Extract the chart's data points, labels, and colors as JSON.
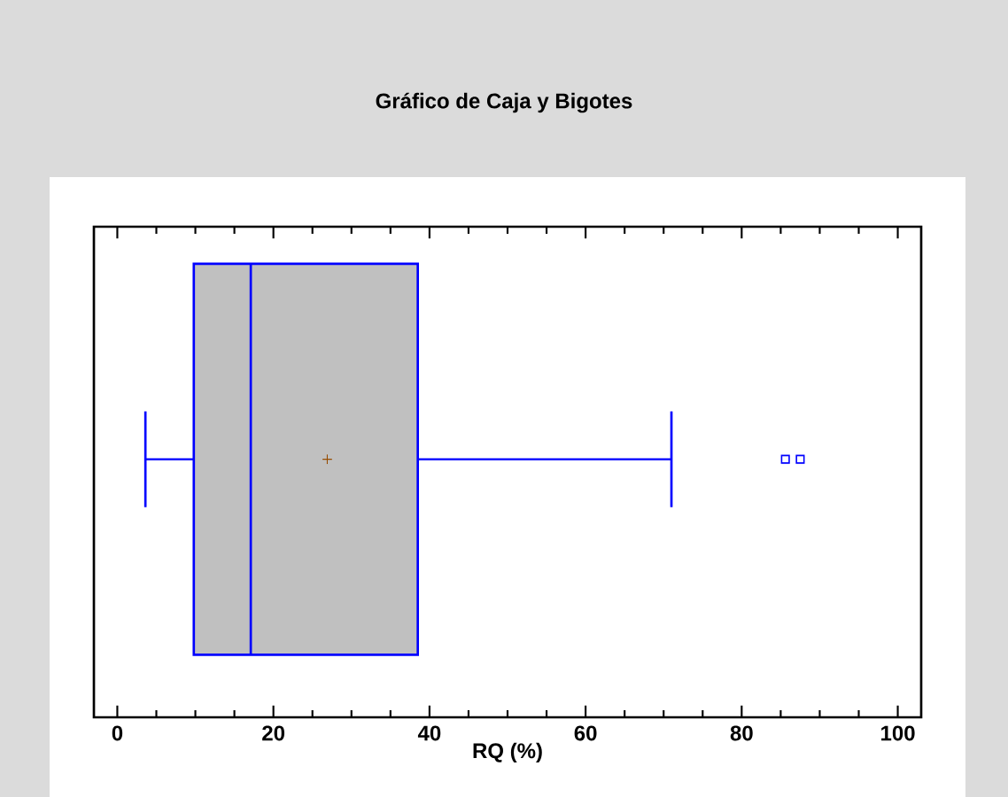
{
  "chart_data": {
    "type": "box",
    "title": "Gráfico de Caja y Bigotes",
    "xlabel": "RQ (%)",
    "orientation": "horizontal",
    "categories": [
      null
    ],
    "color": "#0000ff",
    "boxes": [
      {
        "low": 3.6,
        "q1": 9.8,
        "median": 17.1,
        "q3": 38.5,
        "high": 71.0,
        "mean": 26.9,
        "outliers": [
          85.6,
          87.5
        ]
      }
    ],
    "xlim": [
      -3,
      103
    ],
    "xticks": [
      0,
      20,
      40,
      60,
      80,
      100
    ],
    "tick_labels": "x"
  }
}
